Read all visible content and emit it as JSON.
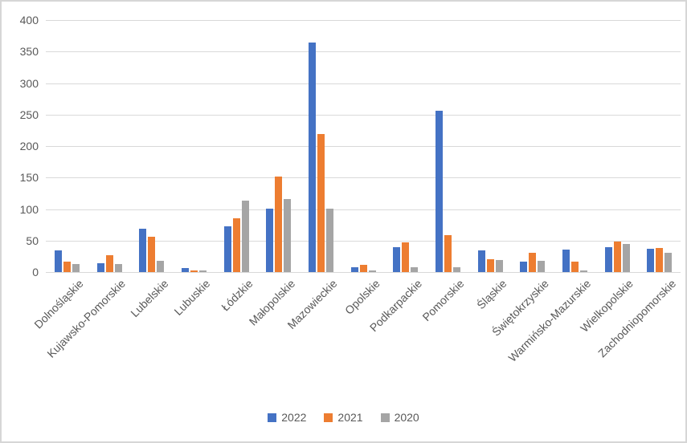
{
  "chart_data": {
    "type": "bar",
    "title": "",
    "categories": [
      "Dolnośląskie",
      "Kujawsko-Pomorskie",
      "Lubelskie",
      "Lubuskie",
      "Łódzkie",
      "Małopolskie",
      "Mazowieckie",
      "Opolskie",
      "Podkarpackie",
      "Pomorskie",
      "Śląskie",
      "Świętokrzyskie",
      "Warmińsko-Mazurskie",
      "Wielkopolskie",
      "Zachodniopomorskie"
    ],
    "series": [
      {
        "name": "2022",
        "color": "#4472C4",
        "values": [
          35,
          14,
          69,
          6,
          73,
          100,
          364,
          8,
          40,
          256,
          35,
          16,
          36,
          39,
          37
        ]
      },
      {
        "name": "2021",
        "color": "#ED7D31",
        "values": [
          17,
          27,
          56,
          3,
          85,
          152,
          219,
          11,
          47,
          58,
          21,
          30,
          17,
          49,
          38
        ]
      },
      {
        "name": "2020",
        "color": "#A5A5A5",
        "values": [
          13,
          13,
          18,
          3,
          114,
          116,
          100,
          2,
          8,
          8,
          19,
          18,
          3,
          44,
          30
        ]
      }
    ],
    "y_axis": {
      "min": 0,
      "max": 400,
      "step": 50,
      "tick_labels": [
        "0",
        "50",
        "100",
        "150",
        "200",
        "250",
        "300",
        "350",
        "400"
      ]
    },
    "grid": true,
    "legend_position": "bottom",
    "colors": {
      "gridline": "#d9d9d9",
      "axis_text": "#595959",
      "background": "#ffffff",
      "border": "#d6d6d6"
    }
  }
}
